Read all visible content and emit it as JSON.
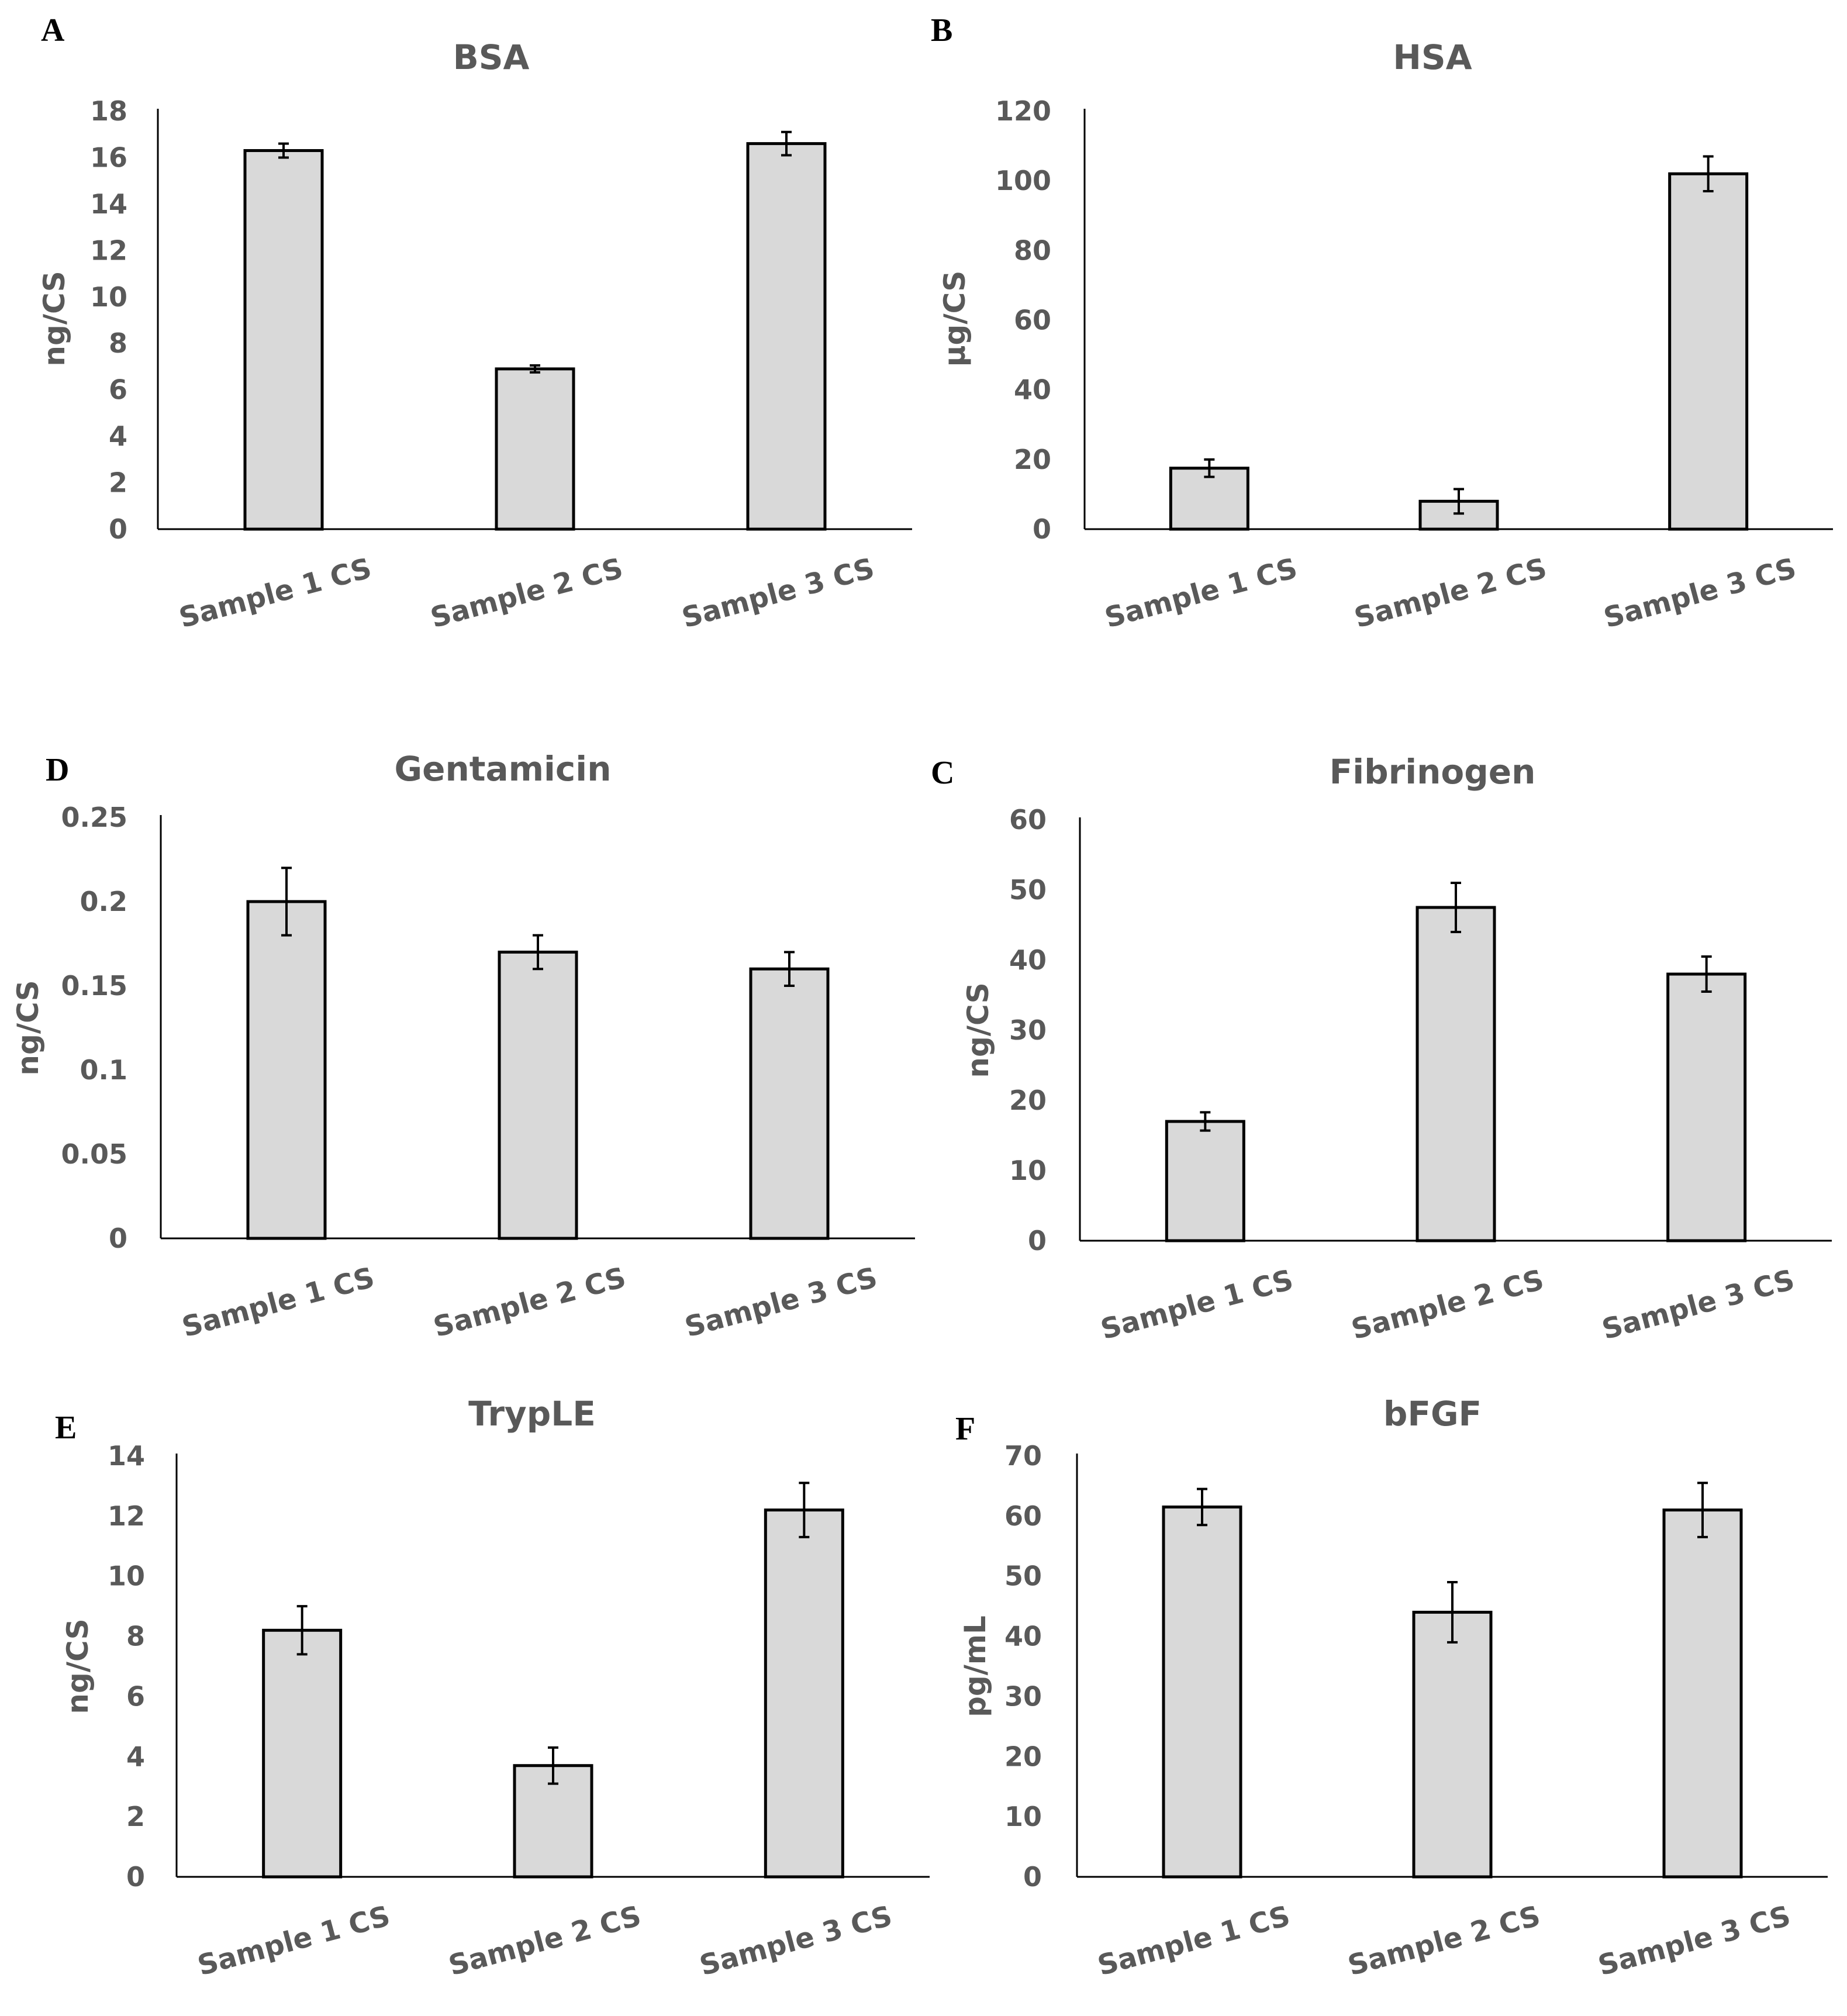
{
  "colors": {
    "bar_fill": "#d9d9d9",
    "bar_stroke": "#000000",
    "text": "#595959",
    "panel_letter": "#000000"
  },
  "chart_data": [
    {
      "panel": "A",
      "type": "bar",
      "title": "BSA",
      "ylabel": "ng/CS",
      "xlabel": "",
      "categories": [
        "Sample 1 CS",
        "Sample 2 CS",
        "Sample 3 CS"
      ],
      "values": [
        16.3,
        6.9,
        16.6
      ],
      "errors": [
        0.3,
        0.15,
        0.5
      ],
      "ylim": [
        0,
        18
      ],
      "ticks": [
        "0",
        "2",
        "4",
        "6",
        "8",
        "10",
        "12",
        "14",
        "16",
        "18"
      ]
    },
    {
      "panel": "B",
      "type": "bar",
      "title": "HSA",
      "ylabel": "µg/CS",
      "xlabel": "",
      "categories": [
        "Sample 1 CS",
        "Sample 2 CS",
        "Sample 3 CS"
      ],
      "values": [
        17.5,
        8,
        102
      ],
      "errors": [
        2.5,
        3.5,
        5
      ],
      "ylim": [
        0,
        120
      ],
      "ticks": [
        "0",
        "20",
        "40",
        "60",
        "80",
        "100",
        "120"
      ]
    },
    {
      "panel": "D",
      "type": "bar",
      "title": "Gentamicin",
      "ylabel": "ng/CS",
      "xlabel": "",
      "categories": [
        "Sample 1 CS",
        "Sample 2 CS",
        "Sample 3 CS"
      ],
      "values": [
        0.2,
        0.17,
        0.16
      ],
      "errors": [
        0.02,
        0.01,
        0.01
      ],
      "ylim": [
        0,
        0.25
      ],
      "ticks": [
        "0",
        "0.05",
        "0.1",
        "0.15",
        "0.2",
        "0.25"
      ]
    },
    {
      "panel": "C",
      "type": "bar",
      "title": "Fibrinogen",
      "ylabel": "ng/CS",
      "xlabel": "",
      "categories": [
        "Sample 1 CS",
        "Sample 2 CS",
        "Sample 3 CS"
      ],
      "values": [
        17,
        47.5,
        38
      ],
      "errors": [
        1.3,
        3.5,
        2.5
      ],
      "ylim": [
        0,
        60
      ],
      "ticks": [
        "0",
        "10",
        "20",
        "30",
        "40",
        "50",
        "60"
      ]
    },
    {
      "panel": "E",
      "type": "bar",
      "title": "TrypLE",
      "ylabel": "ng/CS",
      "xlabel": "",
      "categories": [
        "Sample 1 CS",
        "Sample 2 CS",
        "Sample 3 CS"
      ],
      "values": [
        8.2,
        3.7,
        12.2
      ],
      "errors": [
        0.8,
        0.6,
        0.9
      ],
      "ylim": [
        0,
        14
      ],
      "ticks": [
        "0",
        "2",
        "4",
        "6",
        "8",
        "10",
        "12",
        "14"
      ]
    },
    {
      "panel": "F",
      "type": "bar",
      "title": "bFGF",
      "ylabel": "pg/mL",
      "xlabel": "",
      "categories": [
        "Sample 1 CS",
        "Sample 2 CS",
        "Sample 3 CS"
      ],
      "values": [
        61.5,
        44,
        61
      ],
      "errors": [
        3,
        5,
        4.5
      ],
      "ylim": [
        0,
        70
      ],
      "ticks": [
        "0",
        "10",
        "20",
        "30",
        "40",
        "50",
        "60",
        "70"
      ]
    }
  ]
}
